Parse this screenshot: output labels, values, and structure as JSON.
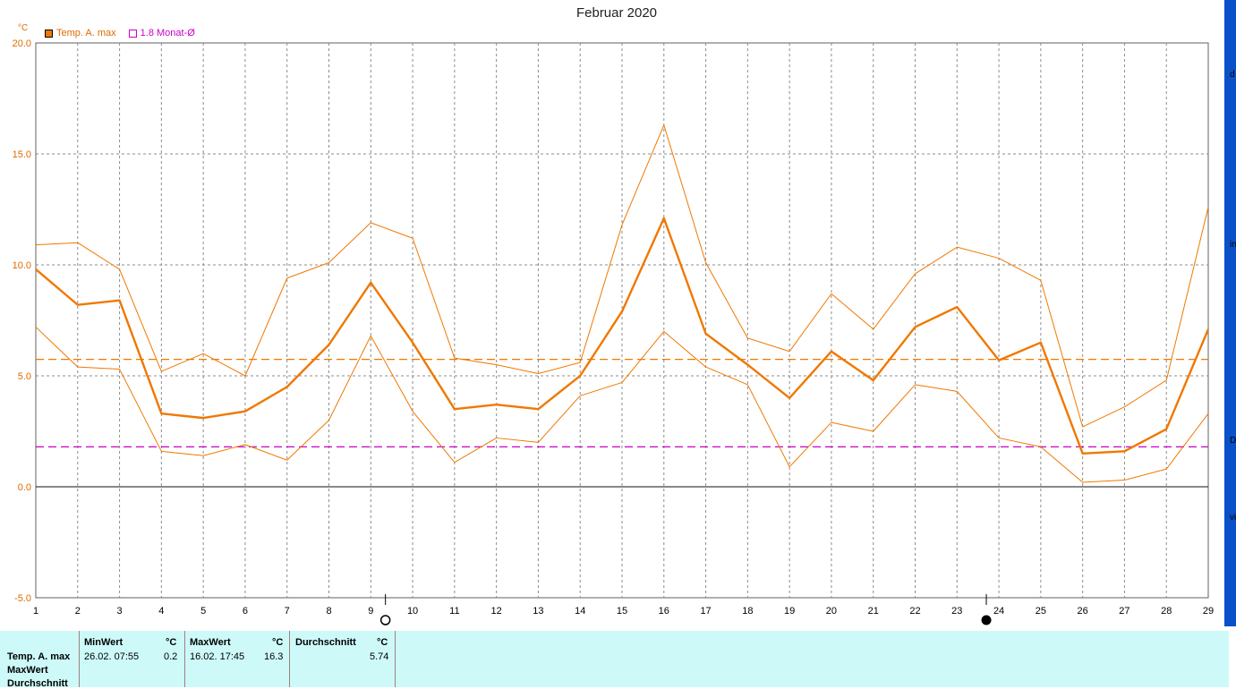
{
  "chart_data": {
    "type": "line",
    "title": "Februar 2020",
    "unit": "°C",
    "ylim": [
      -5.0,
      20.0
    ],
    "yticks": [
      "20.0",
      "15.0",
      "10.0",
      "5.0",
      "0.0",
      "-5.0"
    ],
    "ytick_values": [
      20,
      15,
      10,
      5,
      0,
      -5
    ],
    "x": [
      1,
      2,
      3,
      4,
      5,
      6,
      7,
      8,
      9,
      10,
      11,
      12,
      13,
      14,
      15,
      16,
      17,
      18,
      19,
      20,
      21,
      22,
      23,
      24,
      25,
      26,
      27,
      28,
      29
    ],
    "xticks": [
      "1",
      "2",
      "3",
      "4",
      "5",
      "6",
      "7",
      "8",
      "9",
      "10",
      "11",
      "12",
      "13",
      "14",
      "15",
      "16",
      "17",
      "18",
      "19",
      "20",
      "21",
      "22",
      "23",
      "24",
      "25",
      "26",
      "27",
      "28",
      "29"
    ],
    "xlim": [
      1,
      29
    ],
    "grid": true,
    "legend_position": "top-left",
    "series": [
      {
        "name": "Temp. A. max",
        "color": "#f07800",
        "role": "main",
        "values": [
          9.8,
          8.2,
          8.4,
          3.3,
          3.1,
          3.4,
          4.5,
          6.4,
          9.2,
          6.5,
          3.5,
          3.7,
          3.5,
          5.0,
          7.9,
          12.1,
          6.9,
          5.5,
          4.0,
          6.1,
          4.8,
          7.2,
          8.1,
          5.7,
          6.5,
          1.5,
          1.6,
          2.6,
          7.1
        ]
      },
      {
        "name": "",
        "color": "#f07800",
        "role": "upper",
        "values": [
          10.9,
          11.0,
          9.8,
          5.2,
          6.0,
          5.0,
          9.4,
          10.1,
          11.9,
          11.2,
          5.8,
          5.5,
          5.1,
          5.6,
          11.8,
          16.3,
          10.1,
          6.7,
          6.1,
          8.7,
          7.1,
          9.6,
          10.8,
          10.3,
          9.3,
          2.7,
          3.6,
          4.8,
          12.6
        ]
      },
      {
        "name": "",
        "color": "#f07800",
        "role": "lower",
        "values": [
          7.2,
          5.4,
          5.3,
          1.6,
          1.4,
          1.9,
          1.2,
          3.0,
          6.8,
          3.4,
          1.1,
          2.2,
          2.0,
          4.1,
          4.7,
          7.0,
          5.4,
          4.6,
          0.9,
          2.9,
          2.5,
          4.6,
          4.3,
          2.2,
          1.8,
          0.2,
          0.3,
          0.8,
          3.3
        ]
      }
    ],
    "reference_lines": [
      {
        "name": "1.8 Monat-Ø",
        "value": 1.8,
        "color": "#c800c8"
      },
      {
        "name": "",
        "value": 5.74,
        "color": "#f07800"
      }
    ],
    "moon_phases": [
      {
        "symbol": "full-moon",
        "x": 9.35
      },
      {
        "symbol": "new-moon",
        "x": 23.7
      }
    ]
  },
  "legend": [
    {
      "label": "Temp. A. max",
      "color": "#f07800",
      "filled": true
    },
    {
      "label": "1.8 Monat-Ø",
      "color": "#c800c8",
      "filled": false
    }
  ],
  "right_strip": {
    "letters": [
      "d",
      "in",
      "D",
      "vi"
    ]
  },
  "stats": {
    "headers": {
      "min": "MinWert",
      "min_unit": "°C",
      "max": "MaxWert",
      "max_unit": "°C",
      "avg": "Durchschnitt",
      "avg_unit": "°C"
    },
    "rows": [
      "Temp. A. max",
      "MaxWert",
      "Durchschnitt"
    ],
    "min_time": "26.02. 07:55",
    "min_value": "0.2",
    "max_time": "16.02. 17:45",
    "max_value": "16.3",
    "avg_value": "5.74"
  }
}
